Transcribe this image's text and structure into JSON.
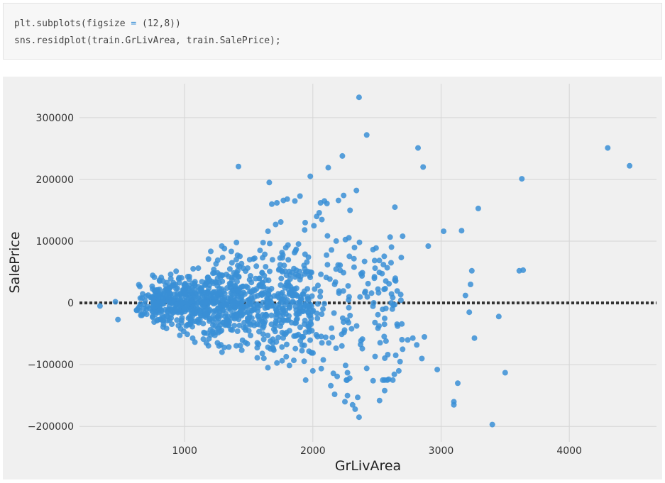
{
  "code_cell": {
    "line1": {
      "prefix": "plt.subplots(figsize ",
      "operator": "=",
      "suffix": " (12,8))"
    },
    "line2": "sns.residplot(train.GrLivArea, train.SalePrice);"
  },
  "chart_data": {
    "type": "scatter",
    "title": "",
    "xlabel": "GrLivArea",
    "ylabel": "SalePrice",
    "xlim": [
      180,
      4680
    ],
    "ylim": [
      -225000,
      355000
    ],
    "xticks": [
      1000,
      2000,
      3000,
      4000
    ],
    "xtick_labels": [
      "1000",
      "2000",
      "3000",
      "4000"
    ],
    "yticks": [
      300000,
      200000,
      100000,
      0,
      -100000,
      -200000
    ],
    "ytick_labels": [
      "300000",
      "200000",
      "100000",
      "0",
      "−100000",
      "−200000"
    ],
    "grid": true,
    "reference_line": {
      "y": 0,
      "style": "dotted"
    },
    "colors": {
      "points": "#3a8fd6",
      "background": "#f0f0f0",
      "grid": "#d5d5d5",
      "zero_line": "#333333"
    },
    "series": [
      {
        "x": [
          2360,
          2420,
          4300,
          4470,
          1420,
          1660,
          2230,
          2120,
          1980,
          2820,
          2860,
          3630,
          3290,
          3610,
          3450,
          3500,
          3400,
          3100,
          3100,
          3130,
          3220,
          3190,
          3240,
          3230,
          2640,
          2900,
          2970,
          2740,
          2780,
          2470,
          2360,
          2330,
          2350,
          2270,
          2170,
          2250,
          2310,
          2520,
          2560,
          2670,
          2680,
          2850,
          2870,
          2810,
          2700,
          2610,
          2550,
          2340,
          2240,
          2290,
          2200,
          2090,
          2060,
          1900,
          1860,
          1800,
          1770,
          1720,
          1680,
          1750,
          1710,
          1650,
          2070,
          1940,
          1310,
          1290,
          2000,
          2160,
          2270,
          2420,
          2560,
          3160,
          3640,
          3260,
          340,
          480,
          460,
          1680,
          1520,
          2480,
          2560,
          2620,
          2580,
          2700,
          3020,
          2050,
          2110,
          2030,
          1990,
          2140,
          2190
        ],
        "y": [
          333000,
          272000,
          251000,
          222000,
          221000,
          195000,
          238000,
          219000,
          205000,
          251000,
          220000,
          201000,
          153000,
          52000,
          -22000,
          -113000,
          -197000,
          -160000,
          -165000,
          -130000,
          -15000,
          12000,
          52000,
          30000,
          155000,
          92000,
          -108000,
          -60000,
          -57000,
          -126000,
          -185000,
          -172000,
          -153000,
          -150000,
          -148000,
          -160000,
          -165000,
          -158000,
          -142000,
          -110000,
          -95000,
          -90000,
          -55000,
          -68000,
          -75000,
          65000,
          62000,
          182000,
          174000,
          150000,
          166000,
          165000,
          162000,
          173000,
          165000,
          168000,
          166000,
          162000,
          160000,
          131000,
          127000,
          116000,
          135000,
          130000,
          88000,
          92000,
          -110000,
          -114000,
          -113000,
          -106000,
          -125000,
          117000,
          53000,
          -57000,
          -5000,
          -27000,
          2000,
          -5000,
          9000,
          40000,
          -25000,
          -10000,
          57000,
          108000,
          116000,
          146000,
          161000,
          140000,
          -81000,
          -134000,
          -119000
        ]
      }
    ]
  }
}
